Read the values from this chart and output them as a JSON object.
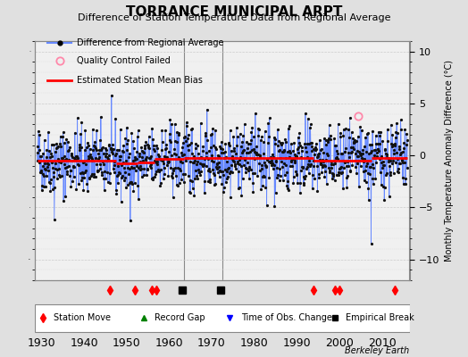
{
  "title": "TORRANCE MUNICIPAL ARPT",
  "subtitle": "Difference of Station Temperature Data from Regional Average",
  "ylabel": "Monthly Temperature Anomaly Difference (°C)",
  "xlabel_years": [
    1930,
    1940,
    1950,
    1960,
    1970,
    1980,
    1990,
    2000,
    2010
  ],
  "xlim": [
    1928.5,
    2016.5
  ],
  "ylim": [
    -12.5,
    11.5
  ],
  "ylim_main": [
    -12,
    11
  ],
  "yticks": [
    -10,
    -5,
    0,
    5,
    10
  ],
  "background_color": "#e0e0e0",
  "plot_bg_color": "#f0f0f0",
  "line_color": "#6688ff",
  "dot_color": "#111111",
  "bias_color": "#ff0000",
  "bias_segments": [
    {
      "x_start": 1929,
      "x_end": 1947.5,
      "y": -0.5
    },
    {
      "x_start": 1947.5,
      "x_end": 1952.5,
      "y": -0.8
    },
    {
      "x_start": 1952.5,
      "x_end": 1956.5,
      "y": -0.65
    },
    {
      "x_start": 1956.5,
      "x_end": 1963.5,
      "y": -0.35
    },
    {
      "x_start": 1963.5,
      "x_end": 1972.5,
      "y": -0.28
    },
    {
      "x_start": 1972.5,
      "x_end": 1994.0,
      "y": -0.28
    },
    {
      "x_start": 1994.0,
      "x_end": 1999.5,
      "y": -0.48
    },
    {
      "x_start": 1999.5,
      "x_end": 2007.5,
      "y": -0.48
    },
    {
      "x_start": 2007.5,
      "x_end": 2016,
      "y": -0.25
    }
  ],
  "station_moves": [
    1946,
    1952,
    1956,
    1957,
    1994,
    1999,
    2000,
    2013
  ],
  "empirical_breaks": [
    1963,
    1972
  ],
  "qc_failed_x": 2004.5,
  "qc_failed_y": 3.8,
  "vertical_lines": [
    1963.5,
    1972.5
  ],
  "seed": 42,
  "legend_items": [
    "Difference from Regional Average",
    "Quality Control Failed",
    "Estimated Station Mean Bias"
  ],
  "bottom_legend": [
    "Station Move",
    "Record Gap",
    "Time of Obs. Change",
    "Empirical Break"
  ],
  "berkeley_text": "Berkeley Earth"
}
